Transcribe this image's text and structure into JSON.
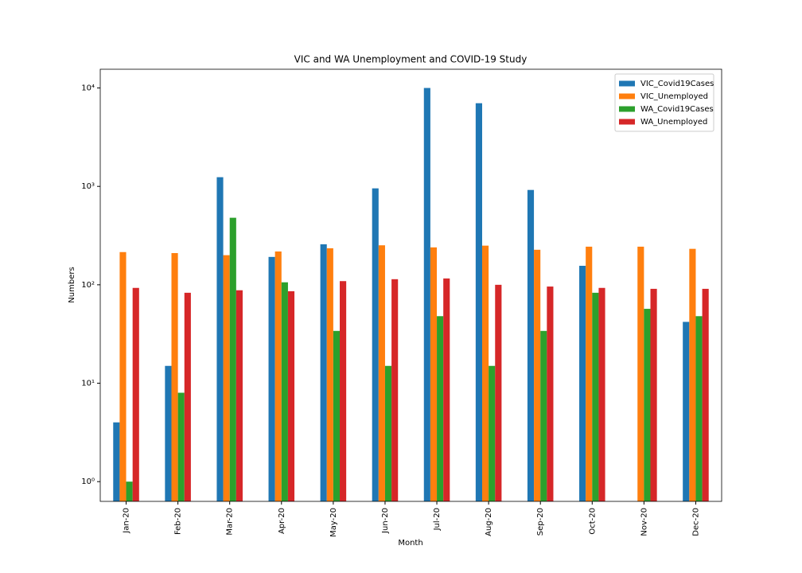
{
  "chart_data": {
    "type": "bar",
    "title": "VIC and WA Unemployment and COVID-19 Study",
    "x_label": "Month",
    "y_label": "Numbers",
    "categories": [
      "Jan-20",
      "Feb-20",
      "Mar-20",
      "Apr-20",
      "May-20",
      "Jun-20",
      "Jul-20",
      "Aug-20",
      "Sep-20",
      "Oct-20",
      "Nov-20",
      "Dec-20"
    ],
    "series": [
      {
        "name": "VIC_Covid19Cases",
        "color": "#1f77b4",
        "values": [
          4,
          15,
          1240,
          192,
          258,
          955,
          10000,
          7000,
          920,
          156,
          null,
          42
        ]
      },
      {
        "name": "VIC_Unemployed",
        "color": "#ff7f0e",
        "values": [
          215,
          210,
          200,
          218,
          235,
          252,
          240,
          250,
          227,
          244,
          244,
          232
        ]
      },
      {
        "name": "WA_Covid19Cases",
        "color": "#2ca02c",
        "values": [
          1,
          8,
          480,
          106,
          34,
          15,
          48,
          15,
          34,
          83,
          57,
          48
        ]
      },
      {
        "name": "WA_Unemployed",
        "color": "#d62728",
        "values": [
          93,
          83,
          88,
          86,
          109,
          114,
          116,
          100,
          96,
          93,
          91,
          91
        ]
      }
    ],
    "log_scale": true,
    "ylim": [
      0.63,
      15500
    ],
    "yticks": [
      {
        "value": 1,
        "label": "10⁰"
      },
      {
        "value": 10,
        "label": "10¹"
      },
      {
        "value": 100,
        "label": "10²"
      },
      {
        "value": 1000,
        "label": "10³"
      },
      {
        "value": 10000,
        "label": "10⁴"
      }
    ],
    "legend": "upper right"
  }
}
